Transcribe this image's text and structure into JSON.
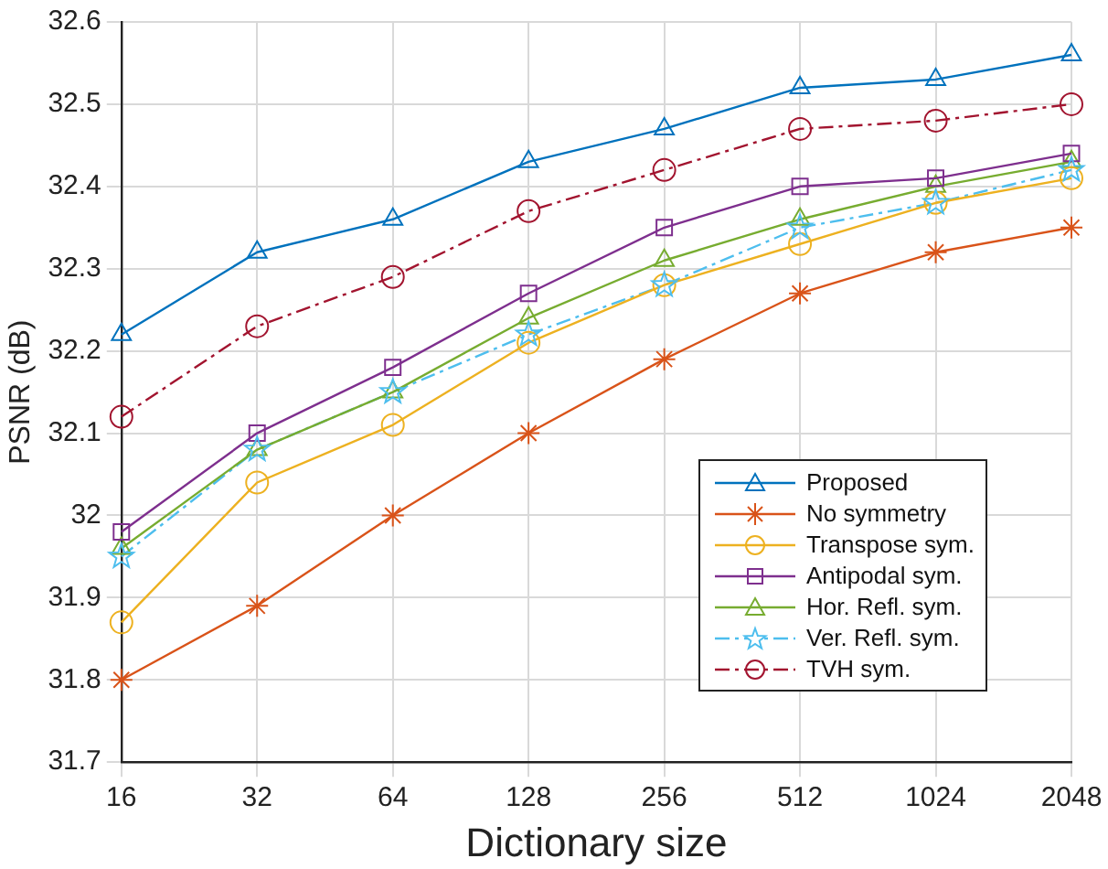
{
  "chart_data": {
    "type": "line",
    "xlabel": "Dictionary size",
    "ylabel": "PSNR (dB)",
    "categories": [
      "16",
      "32",
      "64",
      "128",
      "256",
      "512",
      "1024",
      "2048"
    ],
    "ylim": [
      31.7,
      32.6
    ],
    "yticks": [
      31.7,
      31.8,
      31.9,
      32,
      32.1,
      32.2,
      32.3,
      32.4,
      32.5,
      32.6
    ],
    "grid": true,
    "legend": "bottom right",
    "series": [
      {
        "name": "Proposed",
        "color": "#0072bd",
        "marker": "triangle",
        "line_style": "solid",
        "values": [
          32.22,
          32.32,
          32.36,
          32.43,
          32.47,
          32.52,
          32.53,
          32.56
        ]
      },
      {
        "name": "No symmetry",
        "color": "#d95319",
        "marker": "cross",
        "line_style": "solid",
        "values": [
          31.8,
          31.89,
          32.0,
          32.1,
          32.19,
          32.27,
          32.32,
          32.35
        ]
      },
      {
        "name": "Transpose sym.",
        "color": "#edb120",
        "marker": "circle",
        "line_style": "solid",
        "values": [
          31.87,
          32.04,
          32.11,
          32.21,
          32.28,
          32.33,
          32.38,
          32.41
        ]
      },
      {
        "name": "Antipodal sym.",
        "color": "#7e2f8e",
        "marker": "square",
        "line_style": "solid",
        "values": [
          31.98,
          32.1,
          32.18,
          32.27,
          32.35,
          32.4,
          32.41,
          32.44
        ]
      },
      {
        "name": "Hor. Refl. sym.",
        "color": "#77ac30",
        "marker": "triangle",
        "line_style": "solid",
        "values": [
          31.96,
          32.08,
          32.15,
          32.24,
          32.31,
          32.36,
          32.4,
          32.43
        ]
      },
      {
        "name": "Ver. Refl. sym.",
        "color": "#4dbeee",
        "marker": "star",
        "line_style": "dashed",
        "values": [
          31.95,
          32.08,
          32.15,
          32.22,
          32.28,
          32.35,
          32.38,
          32.42
        ]
      },
      {
        "name": "TVH sym.",
        "color": "#a2142f",
        "marker": "circle",
        "line_style": "dashed",
        "values": [
          32.12,
          32.23,
          32.29,
          32.37,
          32.42,
          32.47,
          32.48,
          32.5
        ]
      }
    ]
  }
}
